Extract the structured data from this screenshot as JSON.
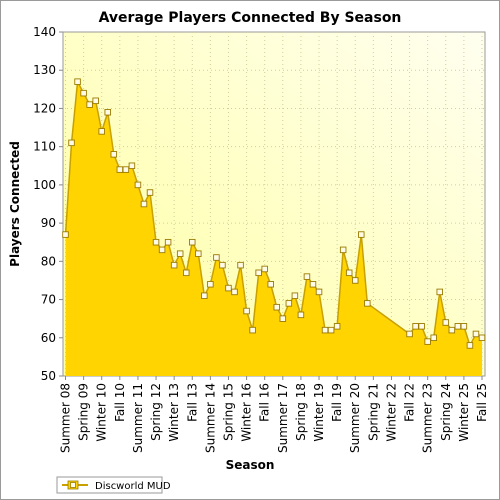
{
  "chart_data": {
    "type": "area",
    "title": "Average Players Connected By Season",
    "xlabel": "Season",
    "ylabel": "Players Connected",
    "ylim": [
      50,
      140
    ],
    "yticks": [
      50,
      60,
      70,
      80,
      90,
      100,
      110,
      120,
      130,
      140
    ],
    "x_tick_labels": [
      "Summer 08",
      "Spring 09",
      "Winter 10",
      "Fall 10",
      "Summer 11",
      "Spring 12",
      "Winter 13",
      "Fall 13",
      "Summer 14",
      "Spring 15",
      "Winter 16",
      "Fall 16",
      "Summer 17",
      "Spring 18",
      "Winter 19",
      "Fall 19",
      "Summer 20",
      "Spring 21",
      "Winter 22",
      "Fall 22",
      "Summer 23",
      "Spring 24",
      "Winter 25",
      "Fall 25"
    ],
    "grid": true,
    "legend_position": "bottom-left",
    "colors": {
      "fill": "#ffd400",
      "line": "#c8a000",
      "marker_fill": "#fffbe8",
      "marker_edge": "#9a7a00",
      "grid": "#cfcf9a"
    },
    "series": [
      {
        "name": "Discworld MUD",
        "values": [
          87,
          111,
          127,
          124,
          121,
          122,
          114,
          119,
          108,
          104,
          104,
          105,
          100,
          95,
          98,
          85,
          83,
          85,
          79,
          82,
          77,
          85,
          82,
          71,
          74,
          81,
          79,
          73,
          72,
          79,
          67,
          62,
          77,
          78,
          74,
          68,
          65,
          69,
          71,
          66,
          76,
          74,
          72,
          62,
          62,
          63,
          83,
          77,
          75,
          87,
          69,
          null,
          null,
          null,
          null,
          null,
          null,
          61,
          63,
          63,
          59,
          60,
          72,
          64,
          62,
          63,
          63,
          58,
          61,
          60
        ]
      }
    ]
  }
}
